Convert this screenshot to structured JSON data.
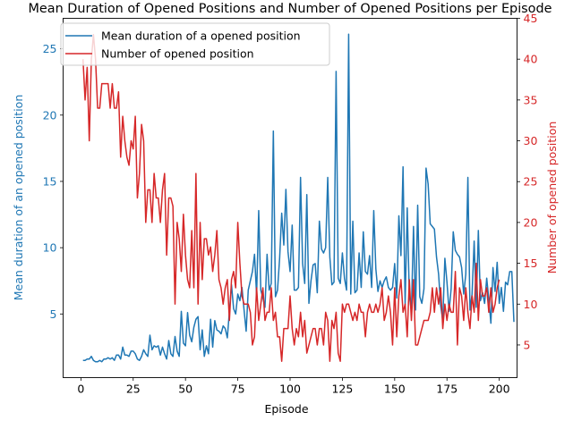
{
  "chart_data": {
    "type": "line",
    "title": "Mean Duration of Opened Positions and Number of Opened Positions per Episode",
    "xlabel": "Episode",
    "xlim": [
      -8.5,
      208.5
    ],
    "xticks": [
      0,
      25,
      50,
      75,
      100,
      125,
      150,
      175,
      200
    ],
    "grid": false,
    "legend_position": "top-left",
    "axes": {
      "left": {
        "label": "Mean duration of an opened position",
        "color": "#1f77b4",
        "ylim": [
          0.2,
          27.3
        ],
        "ticks": [
          5,
          10,
          15,
          20,
          25
        ]
      },
      "right": {
        "label": "Number of opened position",
        "color": "#d62728",
        "ylim": [
          1.0,
          45.0
        ],
        "ticks": [
          5,
          10,
          15,
          20,
          25,
          30,
          35,
          40,
          45
        ]
      }
    },
    "series": [
      {
        "name": "Mean duration of a opened position",
        "axis": "left",
        "color": "#1f77b4",
        "x_start": 1,
        "values": [
          1.5,
          1.5,
          1.6,
          1.6,
          1.8,
          1.5,
          1.4,
          1.4,
          1.5,
          1.4,
          1.6,
          1.6,
          1.7,
          1.6,
          1.7,
          1.5,
          1.9,
          1.9,
          1.6,
          2.5,
          1.9,
          1.9,
          1.8,
          2.2,
          2.2,
          2.0,
          1.6,
          1.5,
          1.8,
          2.3,
          2.0,
          1.8,
          3.4,
          2.3,
          2.6,
          2.5,
          2.6,
          1.9,
          2.5,
          2.0,
          1.6,
          3.0,
          2.0,
          1.8,
          3.3,
          2.2,
          1.8,
          5.2,
          2.8,
          2.6,
          5.1,
          3.4,
          2.9,
          4.0,
          4.6,
          4.8,
          2.3,
          3.8,
          1.8,
          2.6,
          2.0,
          4.6,
          2.5,
          4.5,
          3.8,
          3.7,
          3.5,
          4.1,
          3.9,
          3.2,
          5.2,
          7.2,
          5.4,
          5.0,
          6.5,
          6.0,
          7.0,
          5.3,
          3.7,
          6.8,
          7.5,
          8.2,
          9.5,
          6.4,
          12.8,
          6.8,
          6.2,
          5.5,
          9.5,
          6.8,
          7.3,
          18.8,
          6.3,
          6.8,
          9.2,
          12.6,
          10.2,
          14.4,
          9.7,
          8.2,
          11.7,
          6.8,
          6.8,
          7.0,
          15.3,
          8.8,
          7.3,
          14.0,
          5.8,
          7.5,
          8.7,
          8.8,
          6.6,
          12.0,
          9.9,
          9.6,
          10.0,
          15.3,
          9.3,
          7.2,
          7.4,
          23.3,
          7.7,
          7.3,
          9.6,
          7.7,
          6.8,
          26.1,
          6.5,
          12.0,
          6.6,
          6.8,
          9.6,
          7.0,
          11.2,
          8.2,
          8.0,
          9.4,
          7.0,
          12.8,
          8.4,
          6.7,
          7.5,
          7.0,
          7.5,
          7.8,
          7.0,
          6.8,
          7.0,
          8.8,
          6.2,
          12.4,
          9.4,
          16.1,
          5.7,
          13.0,
          6.4,
          5.2,
          11.6,
          5.3,
          13.2,
          6.3,
          5.8,
          6.9,
          16.0,
          14.8,
          11.8,
          11.6,
          11.4,
          9.3,
          8.0,
          5.6,
          4.5,
          9.2,
          7.4,
          5.2,
          6.9,
          11.2,
          9.8,
          9.5,
          9.3,
          8.5,
          6.5,
          8.0,
          15.3,
          5.3,
          6.5,
          10.5,
          5.5,
          11.3,
          6.0,
          6.6,
          5.8,
          7.7,
          6.1,
          4.3,
          8.5,
          6.7,
          8.9,
          5.8,
          7.0,
          5.2,
          7.4,
          7.2,
          8.2,
          8.2,
          4.4
        ]
      },
      {
        "name": "Number of opened position",
        "axis": "right",
        "color": "#d62728",
        "x_start": 1,
        "values": [
          40,
          35,
          39,
          30,
          40,
          43,
          40,
          34,
          34,
          37,
          37,
          37,
          37,
          34,
          37,
          34,
          34,
          36,
          28,
          33,
          30,
          28,
          27,
          30,
          29,
          33,
          23,
          26,
          32,
          30,
          20,
          24,
          24,
          20,
          26,
          23,
          23,
          20,
          24,
          26,
          16,
          23,
          23,
          22,
          10,
          20,
          18,
          14,
          21,
          16,
          13,
          12,
          19,
          12,
          26,
          10,
          20,
          13,
          18,
          18,
          16,
          17,
          14,
          16,
          19,
          13,
          12,
          10,
          12,
          13,
          8,
          13,
          14,
          12,
          20,
          15,
          11,
          10,
          10,
          10,
          9,
          5,
          6,
          12,
          8,
          10,
          12,
          8,
          9,
          9,
          12,
          8,
          9,
          6,
          6,
          3,
          7,
          7,
          7,
          11,
          7,
          5,
          7,
          6,
          9,
          6,
          8,
          4,
          5,
          6,
          7,
          7,
          5,
          7,
          7,
          5,
          9,
          8,
          3,
          8,
          7,
          9,
          4,
          3,
          10,
          9,
          10,
          10,
          9,
          8,
          9,
          8,
          10,
          9,
          9,
          6,
          9,
          10,
          9,
          9,
          10,
          9,
          10,
          12,
          8,
          9,
          11,
          9,
          5,
          12,
          6,
          11,
          13,
          9,
          10,
          6,
          13,
          8,
          13,
          5,
          5,
          6,
          7,
          8,
          8,
          8,
          9,
          12,
          9,
          12,
          10,
          12,
          7,
          10,
          8,
          10,
          9,
          9,
          14,
          5,
          12,
          11,
          8,
          12,
          9,
          7,
          11,
          9,
          15,
          8,
          13,
          11,
          11,
          12,
          9,
          12,
          9,
          10,
          12,
          13
        ]
      }
    ]
  }
}
